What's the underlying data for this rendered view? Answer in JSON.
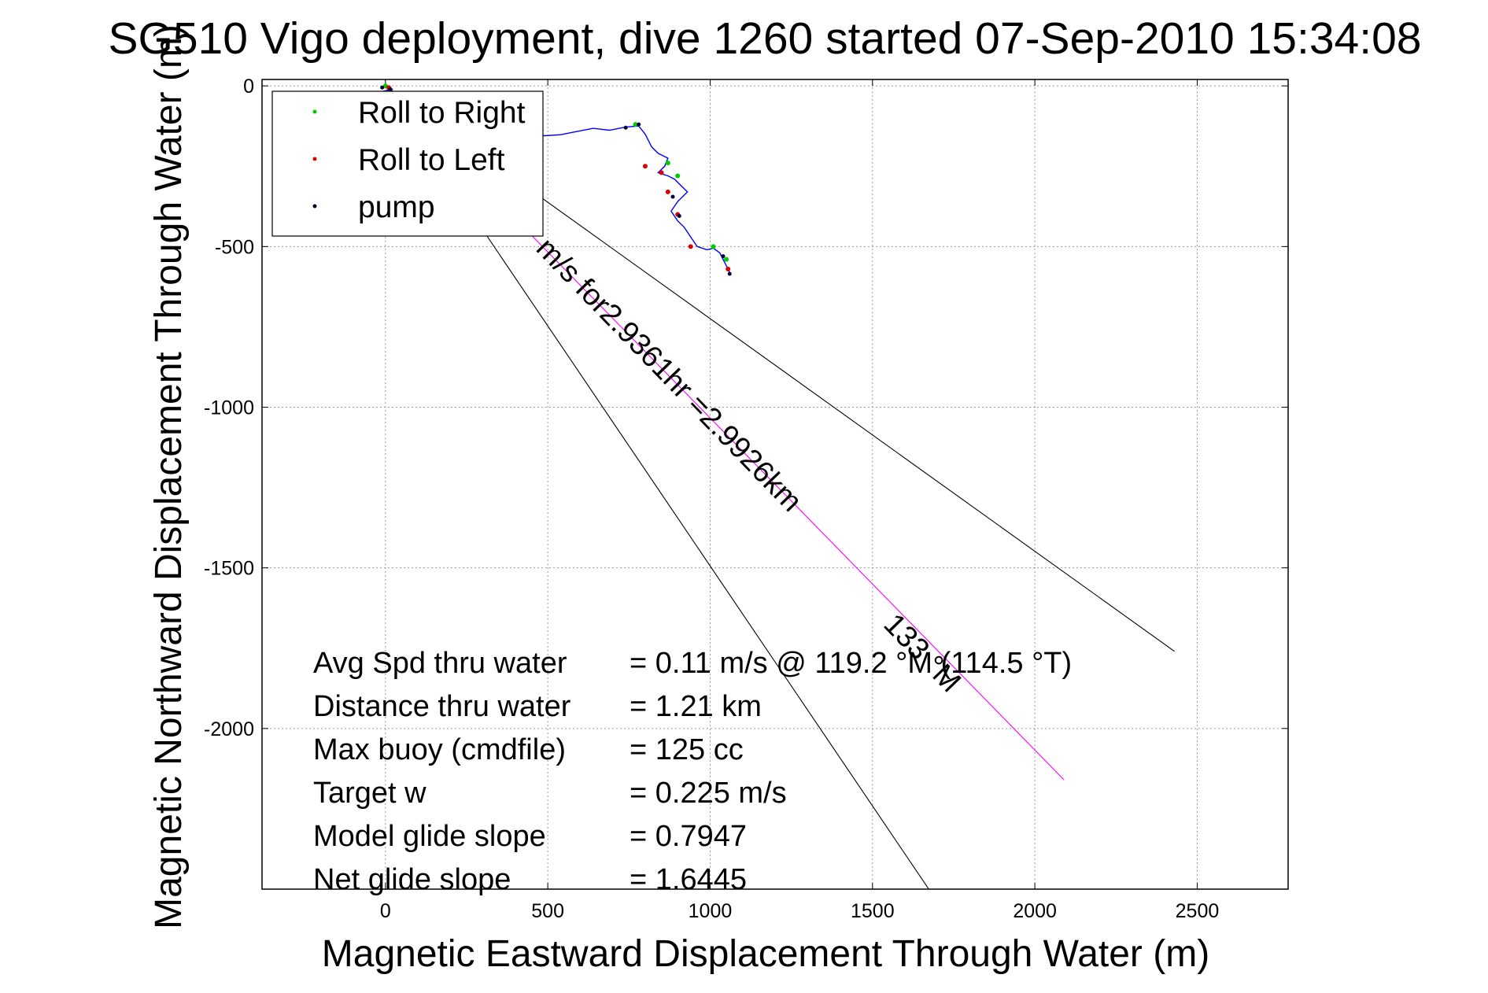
{
  "chart_data": {
    "type": "line",
    "title": "SG510 Vigo deployment, dive 1260 started 07-Sep-2010 15:34:08",
    "xlabel": "Magnetic Eastward Displacement Through Water (m)",
    "ylabel": "Magnetic Northward Displacement Through Water (m)",
    "xlim": [
      -380,
      2780
    ],
    "ylim": [
      -2500,
      20
    ],
    "x_ticks": [
      0,
      500,
      1000,
      1500,
      2000,
      2500
    ],
    "y_ticks": [
      0,
      -500,
      -1000,
      -1500,
      -2000
    ],
    "grid": true,
    "legend": {
      "placement": "top-left",
      "entries": [
        {
          "label": "Roll to Right",
          "color": "#00cc00"
        },
        {
          "label": "Roll to Left",
          "color": "#dd0000"
        },
        {
          "label": "pump",
          "color": "#000033"
        }
      ]
    },
    "series": [
      {
        "name": "",
        "style": "track",
        "color": "#0000ff",
        "points": [
          [
            0,
            0
          ],
          [
            20,
            -10
          ],
          [
            -20,
            -20
          ],
          [
            20,
            -15
          ],
          [
            60,
            -40
          ],
          [
            120,
            -70
          ],
          [
            190,
            -100
          ],
          [
            260,
            -125
          ],
          [
            320,
            -140
          ],
          [
            380,
            -145
          ],
          [
            420,
            -145
          ],
          [
            450,
            -148
          ],
          [
            490,
            -155
          ],
          [
            540,
            -152
          ],
          [
            590,
            -142
          ],
          [
            640,
            -132
          ],
          [
            690,
            -138
          ],
          [
            740,
            -128
          ],
          [
            780,
            -125
          ],
          [
            800,
            -150
          ],
          [
            820,
            -190
          ],
          [
            840,
            -210
          ],
          [
            870,
            -225
          ],
          [
            860,
            -250
          ],
          [
            840,
            -270
          ],
          [
            870,
            -280
          ],
          [
            890,
            -290
          ],
          [
            910,
            -310
          ],
          [
            930,
            -330
          ],
          [
            900,
            -360
          ],
          [
            880,
            -390
          ],
          [
            900,
            -420
          ],
          [
            920,
            -440
          ],
          [
            940,
            -470
          ],
          [
            960,
            -500
          ],
          [
            990,
            -510
          ],
          [
            1010,
            -505
          ],
          [
            1030,
            -520
          ],
          [
            1050,
            -560
          ],
          [
            1060,
            -580
          ]
        ]
      },
      {
        "name": "",
        "style": "bearing-line",
        "color": "#ff00ff",
        "points": [
          [
            0,
            0
          ],
          [
            2090,
            -2160
          ]
        ]
      },
      {
        "name": "",
        "style": "guide-line",
        "color": "#000000",
        "points": [
          [
            0,
            0
          ],
          [
            2430,
            -1760
          ]
        ]
      },
      {
        "name": "",
        "style": "guide-line",
        "color": "#000000",
        "points": [
          [
            0,
            0
          ],
          [
            1680,
            -2510
          ]
        ]
      }
    ],
    "markers": {
      "roll_right": [
        [
          0,
          0
        ],
        [
          770,
          -120
        ],
        [
          870,
          -240
        ],
        [
          900,
          -280
        ],
        [
          1010,
          -500
        ],
        [
          1050,
          -540
        ]
      ],
      "roll_left": [
        [
          10,
          -5
        ],
        [
          800,
          -250
        ],
        [
          850,
          -270
        ],
        [
          870,
          -330
        ],
        [
          900,
          -400
        ],
        [
          940,
          -500
        ],
        [
          1055,
          -570
        ]
      ],
      "pump": [
        [
          -10,
          -5
        ],
        [
          15,
          -10
        ],
        [
          740,
          -130
        ],
        [
          780,
          -120
        ],
        [
          885,
          -345
        ],
        [
          905,
          -405
        ],
        [
          1040,
          -530
        ],
        [
          1060,
          -585
        ]
      ]
    },
    "annotations": [
      {
        "text": "m/s for2.9361hr =2.9926km",
        "x": 460,
        "y": -510,
        "angle_deg": 46
      },
      {
        "text": "133 °M",
        "x": 1530,
        "y": -1680,
        "angle_deg": 46
      }
    ],
    "stats": [
      {
        "label": "Avg Spd thru water",
        "value": "=  0.11 m/s @ 119.2 °M (114.5 °T)"
      },
      {
        "label": "Distance thru water",
        "value": "=  1.21 km"
      },
      {
        "label": "Max buoy (cmdfile)",
        "value": "= 125 cc"
      },
      {
        "label": "Target w",
        "value": "= 0.225 m/s"
      },
      {
        "label": "Model glide slope",
        "value": "= 0.7947"
      },
      {
        "label": "Net glide slope",
        "value": "= 1.6445"
      }
    ]
  }
}
